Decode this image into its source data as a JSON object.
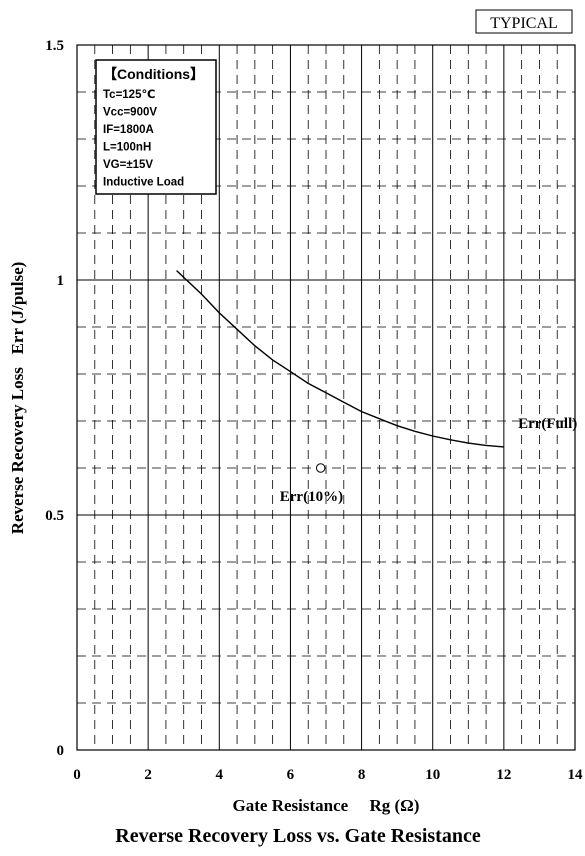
{
  "badge": "TYPICAL",
  "chart_data": {
    "type": "line",
    "title": "Reverse Recovery Loss vs. Gate Resistance",
    "xlabel": "Gate Resistance     Rg (Ω)",
    "ylabel": "Reverse Recovery Loss   Err (J/pulse)",
    "xlim": [
      0,
      14
    ],
    "ylim": [
      0,
      1.5
    ],
    "x_ticks": [
      "0",
      "2",
      "4",
      "6",
      "8",
      "10",
      "12",
      "14"
    ],
    "y_ticks": [
      "0",
      "0.5",
      "1",
      "1.5"
    ],
    "grid": true,
    "conditions": {
      "heading": "【Conditions】",
      "lines": [
        "Tc=125℃",
        "Vcc=900V",
        "IF=1800A",
        "L=100nH",
        "VG=±15V",
        "Inductive Load"
      ]
    },
    "series": [
      {
        "name": "Err(Full)",
        "x": [
          2.8,
          3.5,
          4.0,
          4.5,
          5.0,
          5.5,
          6.0,
          6.5,
          7.0,
          7.5,
          8.0,
          8.5,
          9.0,
          9.5,
          10.0,
          10.5,
          11.0,
          11.5,
          12.0
        ],
        "y": [
          1.02,
          0.97,
          0.93,
          0.895,
          0.86,
          0.83,
          0.805,
          0.78,
          0.76,
          0.74,
          0.72,
          0.705,
          0.69,
          0.678,
          0.668,
          0.66,
          0.653,
          0.648,
          0.645
        ]
      },
      {
        "name": "Err(10%)",
        "x": [
          6.85
        ],
        "y": [
          0.6
        ]
      }
    ],
    "annotations": [
      {
        "text": "Err(Full)",
        "x": 12.4,
        "y": 0.685
      },
      {
        "text": "Err(10%)",
        "x": 5.7,
        "y": 0.53
      }
    ]
  }
}
